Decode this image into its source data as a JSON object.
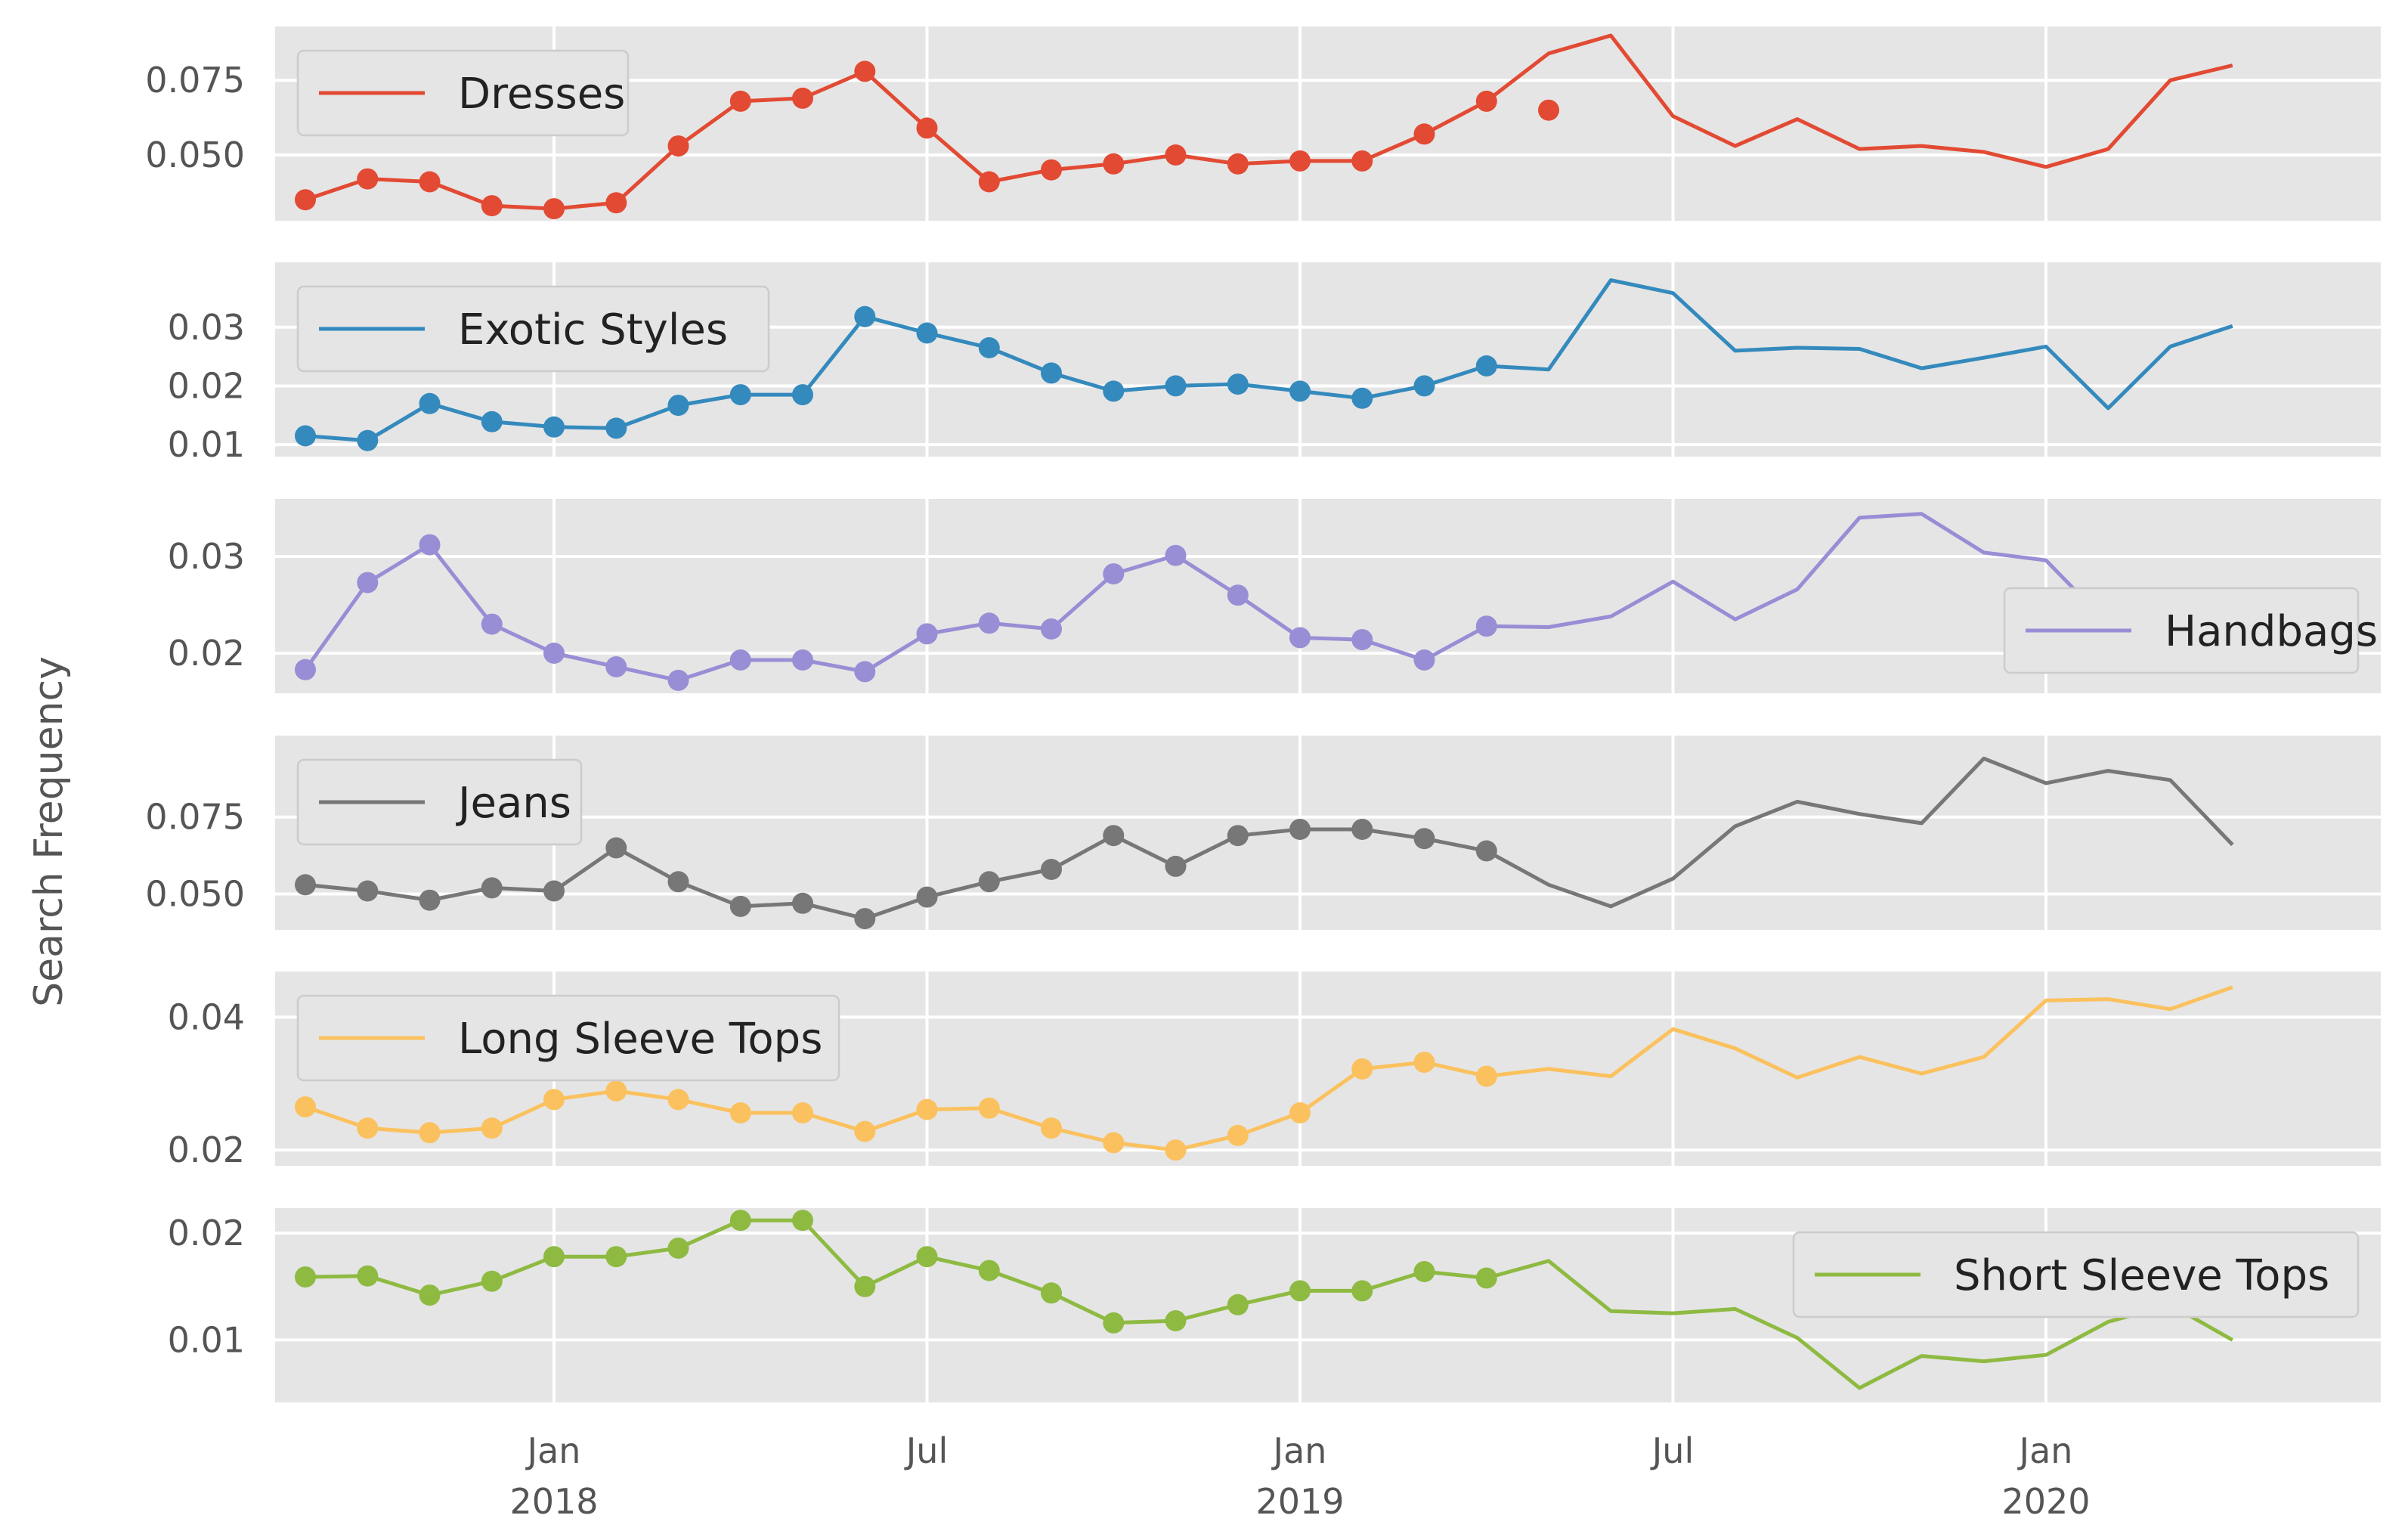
{
  "chart_data": {
    "type": "line",
    "ylabel": "Search Frequency",
    "x": [
      "2017-09",
      "2017-10",
      "2017-11",
      "2017-12",
      "2018-01",
      "2018-02",
      "2018-03",
      "2018-04",
      "2018-05",
      "2018-06",
      "2018-07",
      "2018-08",
      "2018-09",
      "2018-10",
      "2018-11",
      "2018-12",
      "2019-01",
      "2019-02",
      "2019-03",
      "2019-04",
      "2019-05",
      "2019-06",
      "2019-07",
      "2019-08",
      "2019-09",
      "2019-10",
      "2019-11",
      "2019-12",
      "2020-01",
      "2020-02",
      "2020-03",
      "2020-04"
    ],
    "markers_through": "2019-05",
    "x_ticks": [
      {
        "date": "2018-01",
        "label": "Jan",
        "year": "2018"
      },
      {
        "date": "2018-07",
        "label": "Jul",
        "year": ""
      },
      {
        "date": "2019-01",
        "label": "Jan",
        "year": "2019"
      },
      {
        "date": "2019-07",
        "label": "Jul",
        "year": ""
      },
      {
        "date": "2020-01",
        "label": "Jan",
        "year": "2020"
      }
    ],
    "grid": true,
    "series": [
      {
        "name": "Dresses",
        "color": "#E24A33",
        "legend": "top-left",
        "ylim": [
          0.031,
          0.09
        ],
        "yticks": [
          0.05,
          0.075
        ],
        "ytick_labels": [
          "0.050",
          "0.075"
        ],
        "values": [
          0.035,
          0.042,
          0.041,
          0.033,
          0.032,
          0.034,
          0.053,
          0.068,
          0.069,
          0.078,
          0.059,
          0.041,
          0.045,
          0.047,
          0.05,
          0.047,
          0.048,
          0.048,
          0.057,
          0.068,
          0.084,
          0.09,
          0.063,
          0.053,
          0.062,
          0.052,
          0.053,
          0.051,
          0.046,
          0.052,
          0.075,
          0.08
        ],
        "extra_points": [
          {
            "date": "2019-05",
            "value": 0.065
          }
        ]
      },
      {
        "name": "Exotic Styles",
        "color": "#348ABD",
        "legend": "top-left",
        "ylim": [
          0.0095,
          0.0395
        ],
        "yticks": [
          0.01,
          0.02,
          0.03
        ],
        "ytick_labels": [
          "0.01",
          "0.02",
          "0.03"
        ],
        "values": [
          0.0115,
          0.0107,
          0.017,
          0.0139,
          0.013,
          0.0128,
          0.0167,
          0.0185,
          0.0185,
          0.0318,
          0.029,
          0.0265,
          0.0222,
          0.0191,
          0.02,
          0.0203,
          0.0191,
          0.0179,
          0.02,
          0.0234,
          0.0228,
          0.038,
          0.0358,
          0.026,
          0.0265,
          0.0263,
          0.023,
          0.0248,
          0.0267,
          0.0162,
          0.0267,
          0.0302
        ]
      },
      {
        "name": "Handbags",
        "color": "#988ED5",
        "legend": "bottom-right",
        "ylim": [
          0.0168,
          0.035
        ],
        "yticks": [
          0.02,
          0.03
        ],
        "ytick_labels": [
          "0.02",
          "0.03"
        ],
        "values": [
          0.0183,
          0.0273,
          0.0312,
          0.023,
          0.02,
          0.0186,
          0.0172,
          0.0193,
          0.0193,
          0.0181,
          0.022,
          0.0231,
          0.0225,
          0.0282,
          0.0301,
          0.026,
          0.0216,
          0.0214,
          0.0193,
          0.0228,
          0.0227,
          0.0238,
          0.0274,
          0.0235,
          0.0266,
          0.034,
          0.0344,
          0.0304,
          0.0296,
          0.023,
          0.0262,
          0.0266
        ]
      },
      {
        "name": "Jeans",
        "color": "#777777",
        "legend": "top-left",
        "ylim": [
          0.0413,
          0.0985
        ],
        "yticks": [
          0.05,
          0.075
        ],
        "ytick_labels": [
          "0.050",
          "0.075"
        ],
        "values": [
          0.053,
          0.051,
          0.048,
          0.052,
          0.051,
          0.065,
          0.054,
          0.046,
          0.047,
          0.042,
          0.049,
          0.054,
          0.058,
          0.069,
          0.059,
          0.069,
          0.071,
          0.071,
          0.068,
          0.064,
          0.053,
          0.046,
          0.055,
          0.072,
          0.08,
          0.076,
          0.073,
          0.094,
          0.086,
          0.09,
          0.087,
          0.066
        ]
      },
      {
        "name": "Long Sleeve Tops",
        "color": "#FBC15E",
        "legend": "top-left",
        "ylim": [
          0.019,
          0.0455
        ],
        "yticks": [
          0.02,
          0.04
        ],
        "ytick_labels": [
          "0.02",
          "0.04"
        ],
        "values": [
          0.0265,
          0.0233,
          0.0226,
          0.0233,
          0.0276,
          0.0289,
          0.0276,
          0.0256,
          0.0256,
          0.0228,
          0.0261,
          0.0263,
          0.0233,
          0.0211,
          0.02,
          0.0222,
          0.0256,
          0.0322,
          0.0332,
          0.0311,
          0.0322,
          0.0311,
          0.0382,
          0.0353,
          0.0309,
          0.034,
          0.0315,
          0.034,
          0.0425,
          0.0427,
          0.0412,
          0.0445
        ]
      },
      {
        "name": "Short Sleeve Tops",
        "color": "#8EBA42",
        "legend": "top-right",
        "ylim": [
          0.005,
          0.0215
        ],
        "yticks": [
          0.01,
          0.02
        ],
        "ytick_labels": [
          "0.01",
          "0.02"
        ],
        "values": [
          0.0159,
          0.016,
          0.0142,
          0.0155,
          0.0178,
          0.0178,
          0.0186,
          0.0212,
          0.0212,
          0.015,
          0.0178,
          0.0165,
          0.0144,
          0.0116,
          0.0118,
          0.0133,
          0.0146,
          0.0146,
          0.0164,
          0.0158,
          0.0174,
          0.0127,
          0.0125,
          0.0129,
          0.0102,
          0.0055,
          0.0085,
          0.008,
          0.0086,
          0.0117,
          0.0133,
          0.01
        ]
      }
    ]
  }
}
